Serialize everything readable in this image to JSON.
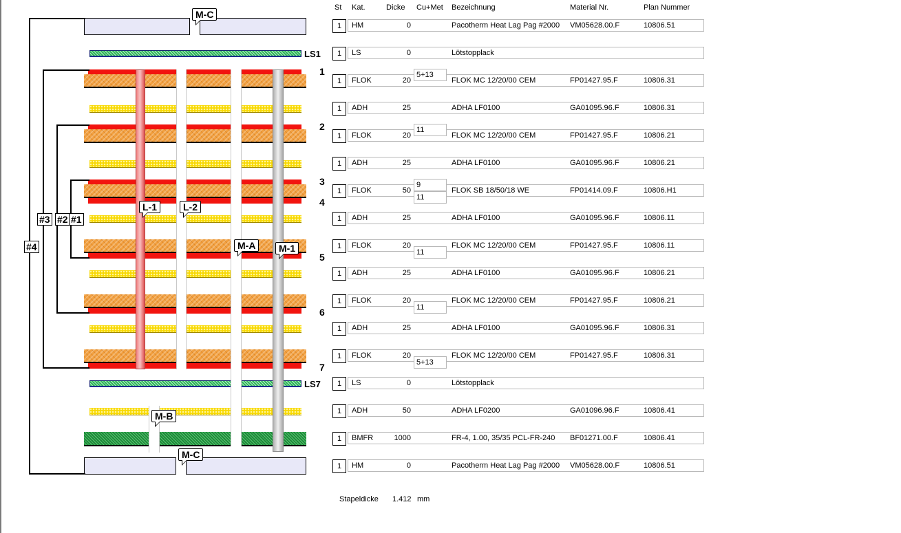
{
  "headers": [
    "St",
    "Kat.",
    "Dicke",
    "Cu+Met",
    "Bezeichnung",
    "Material Nr.",
    "Plan Nummer"
  ],
  "rows": [
    {
      "st": "1",
      "kat": "HM",
      "dicke": "0",
      "cu": [],
      "bez": "Pacotherm Heat Lag Pag #2000",
      "mat": "VM05628.00.F",
      "plan": "10806.51"
    },
    {
      "st": "1",
      "kat": "LS",
      "dicke": "0",
      "cu": [],
      "bez": "Lötstopplack",
      "mat": "",
      "plan": ""
    },
    {
      "st": "1",
      "kat": "FLOK",
      "dicke": "20",
      "cu": [
        "5+13"
      ],
      "cupos": "top",
      "bez": "FLOK MC 12/20/00 CEM",
      "mat": "FP01427.95.F",
      "plan": "10806.31"
    },
    {
      "st": "1",
      "kat": "ADH",
      "dicke": "25",
      "cu": [],
      "bez": "ADHA LF0100",
      "mat": "GA01095.96.F",
      "plan": "10806.31"
    },
    {
      "st": "1",
      "kat": "FLOK",
      "dicke": "20",
      "cu": [
        "11"
      ],
      "cupos": "top",
      "bez": "FLOK MC 12/20/00 CEM",
      "mat": "FP01427.95.F",
      "plan": "10806.21"
    },
    {
      "st": "1",
      "kat": "ADH",
      "dicke": "25",
      "cu": [],
      "bez": "ADHA LF0100",
      "mat": "GA01095.96.F",
      "plan": "10806.21"
    },
    {
      "st": "1",
      "kat": "FLOK",
      "dicke": "50",
      "cu": [
        "9",
        "11"
      ],
      "cupos": "both",
      "bez": "FLOK SB 18/50/18 WE",
      "mat": "FP01414.09.F",
      "plan": "10806.H1"
    },
    {
      "st": "1",
      "kat": "ADH",
      "dicke": "25",
      "cu": [],
      "bez": "ADHA LF0100",
      "mat": "GA01095.96.F",
      "plan": "10806.11"
    },
    {
      "st": "1",
      "kat": "FLOK",
      "dicke": "20",
      "cu": [
        "11"
      ],
      "cupos": "bottom",
      "bez": "FLOK MC 12/20/00 CEM",
      "mat": "FP01427.95.F",
      "plan": "10806.11"
    },
    {
      "st": "1",
      "kat": "ADH",
      "dicke": "25",
      "cu": [],
      "bez": "ADHA LF0100",
      "mat": "GA01095.96.F",
      "plan": "10806.21"
    },
    {
      "st": "1",
      "kat": "FLOK",
      "dicke": "20",
      "cu": [
        "11"
      ],
      "cupos": "bottom",
      "bez": "FLOK MC 12/20/00 CEM",
      "mat": "FP01427.95.F",
      "plan": "10806.21"
    },
    {
      "st": "1",
      "kat": "ADH",
      "dicke": "25",
      "cu": [],
      "bez": "ADHA LF0100",
      "mat": "GA01095.96.F",
      "plan": "10806.31"
    },
    {
      "st": "1",
      "kat": "FLOK",
      "dicke": "20",
      "cu": [
        "5+13"
      ],
      "cupos": "bottom",
      "bez": "FLOK MC 12/20/00 CEM",
      "mat": "FP01427.95.F",
      "plan": "10806.31"
    },
    {
      "st": "1",
      "kat": "LS",
      "dicke": "0",
      "cu": [],
      "bez": "Lötstopplack",
      "mat": "",
      "plan": ""
    },
    {
      "st": "1",
      "kat": "ADH",
      "dicke": "50",
      "cu": [],
      "bez": "ADHA LF0200",
      "mat": "GA01096.96.F",
      "plan": "10806.41"
    },
    {
      "st": "1",
      "kat": "BMFR",
      "dicke": "1000",
      "cu": [],
      "bez": "FR-4, 1.00, 35/35 PCL-FR-240",
      "mat": "BF01271.00.F",
      "plan": "10806.41"
    },
    {
      "st": "1",
      "kat": "HM",
      "dicke": "0",
      "cu": [],
      "bez": "Pacotherm Heat Lag Pag #2000",
      "mat": "VM05628.00.F",
      "plan": "10806.51"
    }
  ],
  "footer": {
    "label": "Stapeldicke",
    "value": "1.412",
    "unit": "mm"
  },
  "diagram": {
    "brackets": [
      "#4",
      "#3",
      "#2",
      "#1"
    ],
    "ls_labels": [
      "LS1",
      "LS7"
    ],
    "copper_layers": [
      "1",
      "2",
      "3",
      "4",
      "5",
      "6",
      "7"
    ],
    "vias": [
      "M-C",
      "M-C",
      "L-1",
      "L-2",
      "M-A",
      "M-1",
      "M-B"
    ]
  },
  "colors": {
    "copper": "#f2140f",
    "flex": "#f2a040",
    "adhesive": "#f8d800",
    "soldermask": "#2fb35a",
    "core": "#1e8a3a",
    "heatpad": "#e8e8f8"
  }
}
